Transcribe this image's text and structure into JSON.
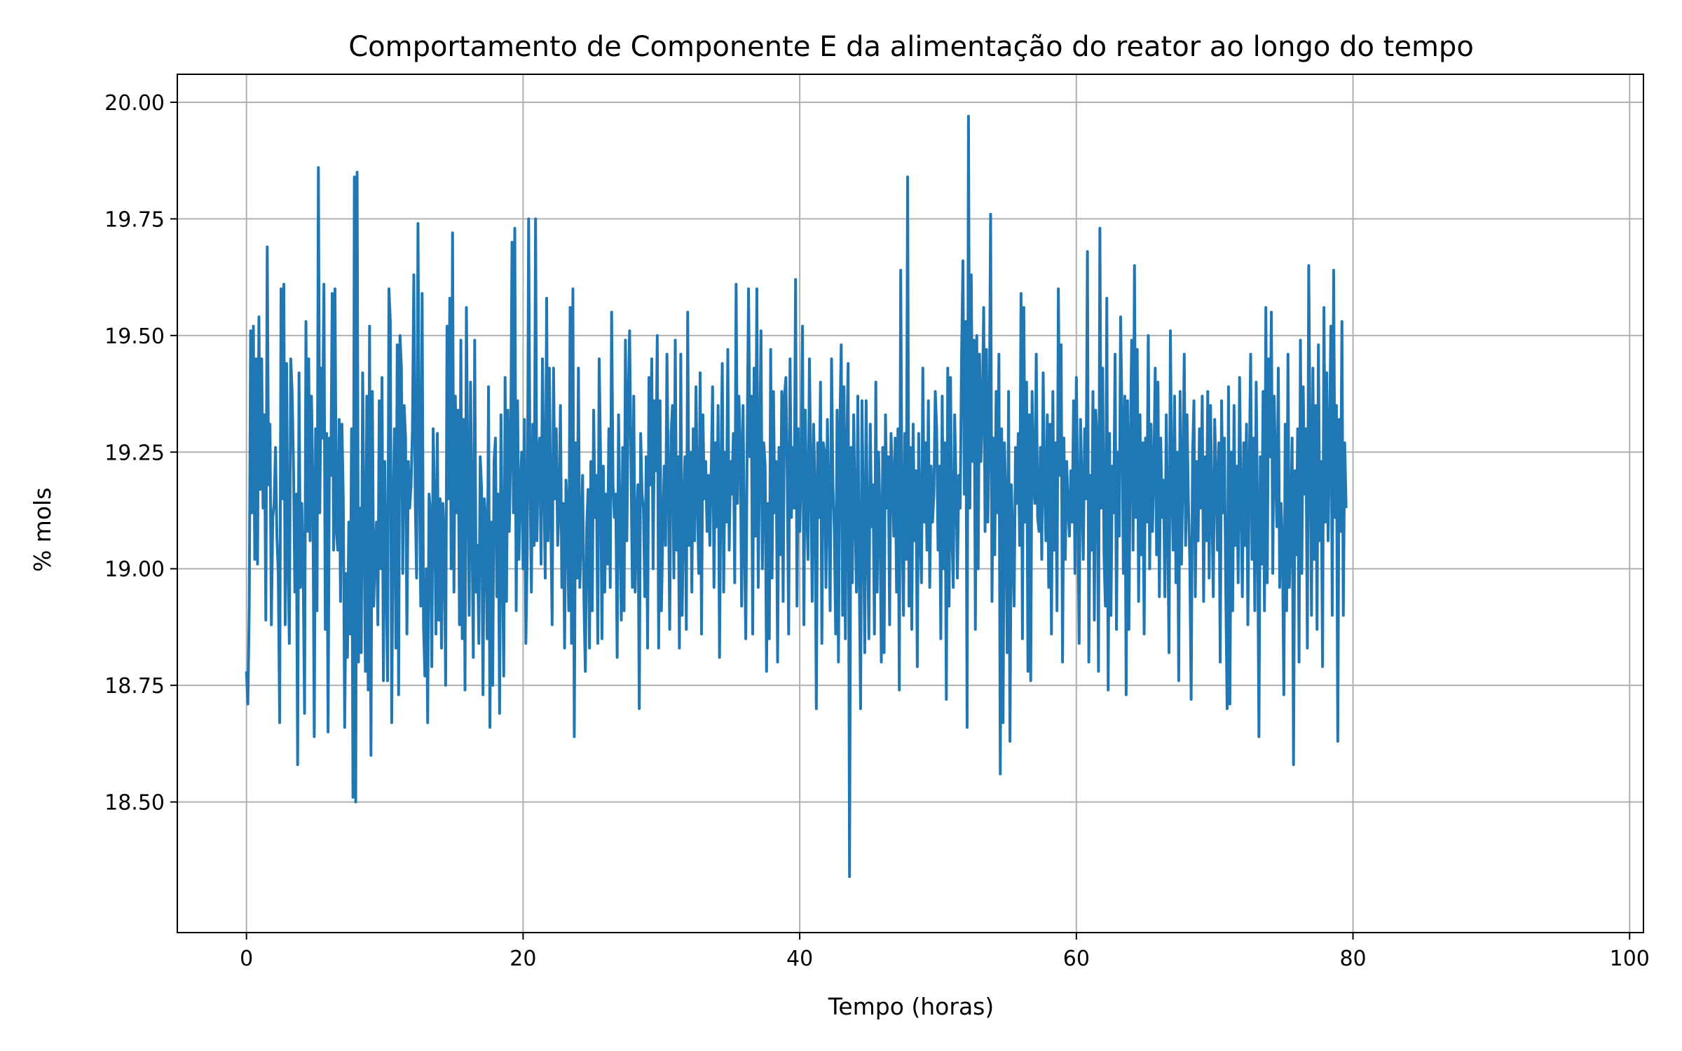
{
  "chart_data": {
    "type": "line",
    "title": "Comportamento de Componente E da alimentação do reator ao longo do tempo",
    "xlabel": "Tempo (horas)",
    "ylabel": "% mols",
    "xlim": [
      -5,
      101
    ],
    "ylim": [
      18.22,
      20.06
    ],
    "x_ticks": [
      0,
      20,
      40,
      60,
      80,
      100
    ],
    "y_ticks": [
      18.5,
      18.75,
      19.0,
      19.25,
      19.5,
      19.75,
      20.0
    ],
    "x_tick_labels": [
      "0",
      "20",
      "40",
      "60",
      "80",
      "100"
    ],
    "y_tick_labels": [
      "18.50",
      "18.75",
      "19.00",
      "19.25",
      "19.50",
      "19.75",
      "20.00"
    ],
    "grid": true,
    "legend": "none",
    "line_color": "#1f77b4",
    "series": [
      {
        "x_start": 0,
        "x_step": 0.1,
        "values": [
          18.78,
          18.71,
          18.92,
          19.51,
          19.12,
          19.52,
          19.02,
          19.45,
          19.01,
          19.54,
          19.17,
          19.45,
          19.13,
          19.33,
          18.89,
          19.69,
          19.18,
          19.31,
          18.88,
          19.11,
          19.14,
          19.26,
          19.07,
          18.99,
          18.67,
          19.6,
          19.15,
          19.61,
          18.88,
          19.44,
          19.02,
          18.84,
          19.45,
          19.38,
          19.22,
          18.95,
          19.16,
          18.58,
          19.42,
          18.96,
          19.14,
          18.99,
          18.69,
          19.53,
          19.08,
          19.45,
          19.06,
          19.37,
          19.18,
          18.64,
          19.3,
          18.91,
          19.86,
          19.12,
          19.43,
          19.28,
          19.61,
          18.87,
          19.29,
          18.65,
          19.28,
          19.2,
          19.59,
          19.04,
          19.6,
          19.08,
          19.04,
          19.32,
          18.93,
          19.31,
          19.15,
          18.66,
          18.99,
          18.81,
          19.1,
          18.86,
          19.3,
          18.51,
          19.84,
          18.5,
          19.85,
          18.8,
          19.13,
          18.82,
          19.42,
          19.09,
          18.78,
          19.37,
          18.74,
          19.52,
          18.6,
          19.38,
          18.92,
          19.04,
          19.1,
          18.88,
          19.36,
          19.0,
          19.41,
          18.76,
          19.23,
          18.99,
          18.76,
          19.6,
          19.53,
          18.67,
          19.11,
          19.3,
          18.83,
          19.48,
          18.73,
          19.5,
          19.43,
          18.99,
          19.35,
          19.28,
          18.86,
          19.23,
          19.13,
          19.18,
          19.3,
          19.63,
          19.15,
          18.98,
          19.74,
          19.2,
          18.92,
          19.59,
          18.88,
          18.77,
          19.0,
          18.67,
          19.16,
          19.12,
          18.79,
          19.3,
          19.14,
          18.86,
          19.29,
          18.89,
          19.15,
          18.83,
          19.14,
          19.06,
          18.75,
          19.52,
          19.15,
          19.58,
          19.0,
          19.72,
          18.95,
          19.37,
          19.12,
          19.34,
          18.88,
          19.49,
          18.85,
          19.32,
          18.74,
          19.56,
          19.21,
          18.9,
          19.4,
          19.1,
          18.81,
          19.49,
          18.95,
          19.05,
          18.84,
          19.24,
          19.17,
          18.73,
          19.15,
          19.1,
          18.85,
          19.39,
          18.66,
          19.1,
          18.75,
          19.23,
          19.28,
          18.94,
          19.16,
          18.69,
          19.33,
          19.04,
          18.77,
          19.41,
          18.93,
          19.34,
          19.08,
          19.25,
          19.7,
          19.12,
          19.73,
          18.91,
          19.36,
          19.02,
          19.18,
          19.25,
          19.0,
          19.32,
          18.84,
          19.04,
          19.75,
          19.2,
          18.95,
          19.31,
          19.05,
          19.75,
          19.06,
          19.24,
          19.28,
          19.01,
          19.45,
          19.19,
          18.98,
          19.58,
          19.06,
          19.43,
          19.11,
          18.88,
          19.43,
          19.15,
          19.3,
          19.05,
          19.13,
          19.35,
          18.96,
          19.14,
          18.83,
          19.19,
          19.12,
          18.91,
          19.56,
          18.84,
          19.6,
          18.64,
          19.27,
          18.98,
          19.43,
          18.96,
          19.07,
          19.2,
          18.93,
          18.78,
          19.09,
          19.17,
          18.83,
          19.23,
          18.91,
          19.34,
          19.11,
          19.2,
          18.84,
          19.45,
          19.24,
          18.85,
          19.22,
          18.95,
          19.16,
          19.01,
          19.3,
          18.96,
          19.55,
          19.18,
          19.11,
          19.16,
          18.81,
          19.33,
          19.11,
          18.89,
          19.26,
          18.91,
          19.49,
          19.06,
          19.36,
          19.51,
          19.23,
          18.96,
          19.37,
          18.95,
          19.1,
          19.18,
          18.7,
          19.29,
          19.16,
          19.13,
          18.94,
          19.24,
          18.83,
          19.41,
          19.18,
          19.45,
          19.0,
          19.36,
          19.21,
          19.5,
          18.83,
          19.36,
          18.91,
          19.08,
          19.22,
          19.05,
          19.46,
          19.19,
          18.87,
          19.29,
          19.35,
          18.98,
          19.49,
          19.04,
          19.24,
          18.83,
          19.46,
          18.9,
          19.12,
          19.24,
          18.87,
          19.55,
          19.05,
          19.25,
          18.95,
          19.3,
          19.06,
          19.39,
          19.15,
          18.99,
          19.42,
          18.86,
          19.33,
          19.15,
          19.23,
          19.08,
          19.2,
          19.05,
          19.21,
          19.39,
          18.96,
          19.27,
          19.09,
          19.35,
          18.81,
          19.19,
          19.44,
          18.95,
          19.25,
          19.1,
          19.47,
          19.04,
          19.23,
          19.16,
          19.29,
          18.97,
          19.61,
          19.14,
          19.37,
          19.27,
          18.92,
          19.35,
          19.06,
          18.85,
          19.27,
          19.6,
          19.24,
          19.37,
          18.86,
          19.43,
          19.07,
          19.6,
          18.96,
          19.24,
          19.51,
          19.0,
          19.27,
          19.22,
          18.78,
          19.14,
          18.85,
          19.47,
          18.98,
          19.38,
          19.12,
          19.23,
          18.8,
          19.26,
          19.03,
          19.38,
          18.93,
          19.37,
          19.41,
          19.19,
          18.86,
          19.45,
          19.11,
          19.26,
          19.13,
          19.62,
          18.92,
          19.3,
          19.08,
          19.21,
          19.52,
          18.88,
          19.34,
          19.14,
          19.02,
          19.45,
          19.21,
          18.93,
          19.31,
          19.18,
          18.7,
          19.27,
          19.11,
          19.4,
          18.84,
          19.27,
          19.25,
          18.96,
          19.32,
          19.13,
          18.91,
          19.45,
          19.18,
          19.08,
          18.86,
          19.34,
          18.8,
          19.3,
          19.48,
          18.9,
          19.39,
          18.85,
          19.26,
          19.44,
          18.34,
          19.26,
          18.97,
          19.33,
          19.12,
          18.95,
          19.37,
          19.0,
          18.7,
          19.36,
          19.12,
          18.82,
          19.36,
          19.07,
          18.85,
          19.31,
          19.09,
          19.18,
          18.86,
          19.4,
          18.95,
          19.25,
          19.12,
          18.8,
          19.26,
          18.82,
          19.33,
          19.13,
          19.24,
          18.88,
          19.29,
          19.2,
          19.07,
          19.28,
          18.95,
          19.3,
          18.74,
          19.64,
          19.1,
          18.9,
          19.29,
          19.02,
          19.84,
          18.92,
          19.26,
          18.87,
          19.31,
          19.06,
          19.21,
          18.79,
          19.29,
          19.09,
          18.97,
          19.43,
          19.1,
          19.27,
          19.04,
          19.36,
          18.96,
          19.22,
          19.1,
          19.16,
          19.38,
          19.3,
          19.04,
          19.22,
          18.85,
          19.37,
          19.0,
          19.27,
          18.72,
          19.43,
          18.92,
          19.41,
          19.08,
          18.96,
          19.33,
          19.18,
          18.98,
          19.2,
          19.13,
          19.45,
          19.66,
          19.16,
          19.53,
          18.66,
          19.97,
          19.13,
          19.63,
          19.23,
          19.49,
          18.87,
          19.5,
          19.0,
          19.46,
          19.23,
          19.34,
          19.56,
          19.08,
          19.47,
          19.1,
          19.29,
          19.76,
          18.93,
          19.28,
          19.03,
          19.38,
          19.12,
          19.46,
          18.56,
          19.3,
          18.67,
          19.27,
          19.14,
          18.82,
          19.38,
          18.63,
          19.18,
          19.06,
          18.92,
          19.26,
          19.14,
          19.29,
          19.05,
          19.59,
          18.85,
          19.56,
          19.1,
          19.4,
          18.78,
          19.33,
          18.76,
          19.38,
          19.19,
          19.14,
          19.46,
          19.11,
          19.08,
          19.26,
          19.02,
          19.42,
          19.18,
          19.06,
          19.33,
          18.96,
          19.31,
          18.86,
          19.38,
          19.04,
          19.27,
          18.91,
          19.6,
          19.2,
          19.48,
          18.8,
          19.28,
          19.02,
          19.23,
          19.13,
          19.07,
          19.21,
          19.1,
          19.36,
          18.99,
          19.41,
          19.16,
          18.84,
          19.32,
          19.18,
          19.02,
          19.3,
          19.15,
          19.68,
          18.8,
          19.2,
          19.04,
          19.38,
          18.89,
          19.34,
          19.27,
          18.78,
          19.73,
          19.13,
          19.43,
          19.03,
          18.92,
          19.58,
          18.74,
          19.29,
          18.9,
          19.22,
          19.12,
          19.46,
          18.87,
          19.25,
          19.07,
          19.54,
          19.32,
          18.99,
          19.37,
          18.73,
          19.36,
          18.87,
          19.26,
          19.49,
          19.04,
          19.65,
          19.11,
          19.47,
          18.93,
          19.33,
          19.03,
          19.27,
          18.86,
          19.28,
          19.1,
          19.5,
          19.0,
          19.31,
          19.08,
          19.2,
          19.43,
          19.03,
          19.4,
          18.94,
          19.28,
          19.11,
          19.19,
          18.94,
          19.33,
          19.1,
          18.82,
          19.51,
          19.18,
          19.04,
          19.37,
          18.97,
          19.25,
          18.76,
          19.38,
          19.01,
          19.2,
          19.46,
          19.05,
          19.33,
          19.14,
          19.02,
          18.72,
          19.24,
          19.36,
          18.94,
          19.23,
          19.06,
          19.3,
          19.13,
          19.37,
          18.93,
          19.24,
          19.06,
          19.38,
          18.98,
          19.35,
          19.13,
          18.94,
          19.32,
          19.2,
          19.04,
          19.27,
          18.8,
          19.36,
          19.12,
          19.28,
          18.96,
          18.7,
          19.39,
          18.71,
          19.25,
          18.91,
          19.35,
          19.05,
          19.22,
          18.97,
          19.41,
          19.15,
          18.94,
          19.27,
          19.05,
          19.31,
          18.88,
          19.2,
          19.46,
          19.02,
          19.28,
          18.91,
          19.4,
          19.11,
          18.64,
          19.24,
          19.01,
          19.38,
          18.91,
          19.56,
          18.97,
          19.45,
          19.24,
          19.55,
          18.99,
          19.37,
          19.21,
          19.09,
          19.43,
          18.96,
          19.14,
          19.05,
          18.73,
          19.31,
          18.91,
          19.46,
          18.96,
          19.1,
          19.28,
          18.58,
          19.21,
          19.03,
          19.3,
          18.8,
          19.49,
          18.99,
          19.39,
          19.16,
          19.3,
          18.83,
          19.65,
          19.26,
          18.9,
          19.43,
          19.02,
          19.35,
          18.87,
          19.48,
          19.06,
          19.23,
          18.79,
          19.56,
          19.1,
          19.42,
          19.06,
          19.27,
          19.52,
          18.9,
          19.64,
          19.11,
          19.35,
          18.63,
          19.32,
          19.08,
          19.53,
          18.9,
          19.27,
          19.13
        ]
      }
    ]
  }
}
